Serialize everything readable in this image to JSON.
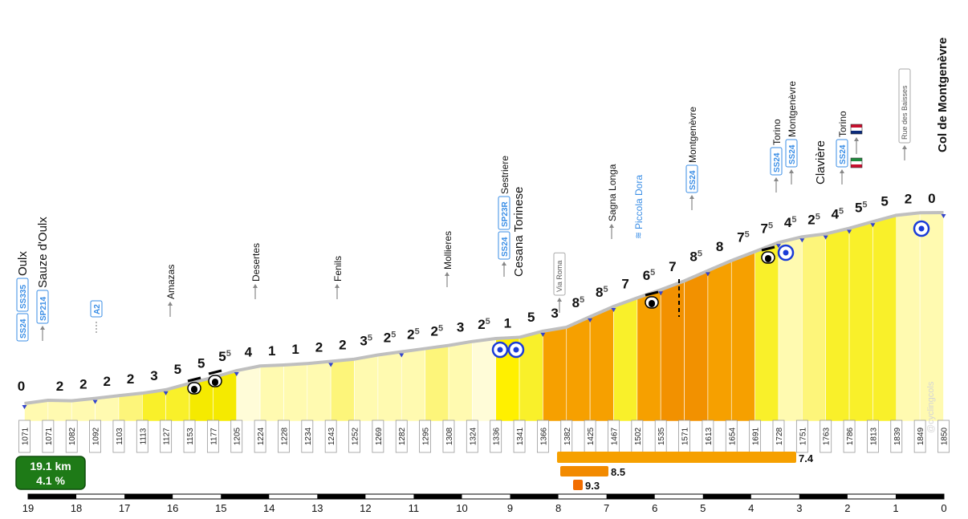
{
  "title": "Col de Montgenèvre",
  "summary": {
    "distance": "19.1 km",
    "gradient": "4.1 %"
  },
  "watermark": "@cyclingcols",
  "colors": {
    "g0": "#fffcd8",
    "g1": "#fffab0",
    "g2": "#fdf57a",
    "g3": "#f9f02a",
    "g4": "#f5ea00",
    "g5": "#fff000",
    "g7": "#f6a000",
    "g8": "#f29100",
    "road": "#bfbfbf",
    "marker": "#3344cc",
    "summary_bg": "#1e7a17"
  },
  "chart_data": {
    "type": "area",
    "title": "Col de Montgenèvre",
    "xlabel": "",
    "ylabel": "",
    "x_axis_direction": "descending",
    "xlim": [
      19,
      0
    ],
    "ylim": [
      1071,
      1850
    ],
    "x_ticks": [
      "19",
      "18",
      "17",
      "16",
      "15",
      "14",
      "13",
      "12",
      "11",
      "10",
      "9",
      "8",
      "7",
      "6",
      "5",
      "4",
      "3",
      "2",
      "1",
      "0"
    ],
    "elevations": [
      1071,
      1071,
      1082,
      1092,
      1103,
      1113,
      1127,
      1153,
      1177,
      1205,
      1224,
      1228,
      1234,
      1243,
      1252,
      1269,
      1282,
      1295,
      1308,
      1324,
      1336,
      1341,
      1366,
      1382,
      1425,
      1467,
      1502,
      1535,
      1571,
      1613,
      1654,
      1691,
      1728,
      1751,
      1763,
      1786,
      1813,
      1839,
      1849,
      1850
    ],
    "gradients": [
      "0",
      "2",
      "2",
      "2",
      "2",
      "3",
      "5",
      "5",
      "5.5",
      "4",
      "1",
      "1",
      "2",
      "2",
      "3.5",
      "2.5",
      "2.5",
      "2.5",
      "3",
      "2.5",
      "1",
      "5",
      "3",
      "8.5",
      "8.5",
      "7",
      "6.5",
      "7",
      "8.5",
      "8",
      "7.5",
      "7.5",
      "4.5",
      "2.5",
      "4.5",
      "5.5",
      "5",
      "2",
      "0"
    ],
    "segment_colors": [
      "g1",
      "g1",
      "g1",
      "g1",
      "g2",
      "g3",
      "g3",
      "g4",
      "g4",
      "g0",
      "g1",
      "g1",
      "g1",
      "g2",
      "g1",
      "g1",
      "g1",
      "g2",
      "g1",
      "g0",
      "g5",
      "g3",
      "g7",
      "g7",
      "g7",
      "g3",
      "g7",
      "g8",
      "g8",
      "g7",
      "g7",
      "g3",
      "g1",
      "g2",
      "g3",
      "g3",
      "g3",
      "g1",
      "g1"
    ],
    "waypoints": [
      {
        "label": "Oulx",
        "badges": [
          "SS24",
          "SS335"
        ],
        "style": "big"
      },
      {
        "label": "Sauze d'Oulx",
        "badges": [
          "SP214"
        ],
        "style": "big",
        "arrow": true
      },
      {
        "label": "",
        "badges": [
          "A2"
        ],
        "style": "dotted"
      },
      {
        "label": "Amazas",
        "badges": [],
        "arrow": true
      },
      {
        "label": "Desertes",
        "badges": [],
        "arrow": true
      },
      {
        "label": "Fenils",
        "badges": [],
        "arrow": true
      },
      {
        "label": "Mollieres",
        "badges": [],
        "arrow": true
      },
      {
        "label": "Sestriere",
        "badges": [
          "SS24",
          "SP23R"
        ],
        "arrow": true
      },
      {
        "label": "Cesana Torinese",
        "badges": [],
        "style": "big"
      },
      {
        "label": "Via Roma",
        "badges": [],
        "boxed": true,
        "arrow": true
      },
      {
        "label": "Sagna Longa",
        "badges": [],
        "arrow": true
      },
      {
        "label": "Piccola Dora",
        "badges": [],
        "water": true
      },
      {
        "label": "Montgenèvre",
        "badges": [
          "SS24"
        ],
        "arrow": true
      },
      {
        "label": "Torino",
        "badges": [
          "SS24"
        ],
        "arrow": true
      },
      {
        "label": "Montgenèvre",
        "badges": [
          "SS24"
        ],
        "arrow": true
      },
      {
        "label": "Clavière",
        "badges": [],
        "style": "big"
      },
      {
        "label": "Torino",
        "badges": [
          "SS24"
        ],
        "arrow": true
      },
      {
        "label": "Rue des Baisses",
        "badges": [],
        "boxed": true,
        "arrow": true
      },
      {
        "label": "Col de Montgenèvre",
        "badges": [],
        "style": "summit"
      }
    ],
    "climb_bars": [
      {
        "value": "7.4"
      },
      {
        "value": "8.5"
      },
      {
        "value": "9.3"
      }
    ]
  }
}
